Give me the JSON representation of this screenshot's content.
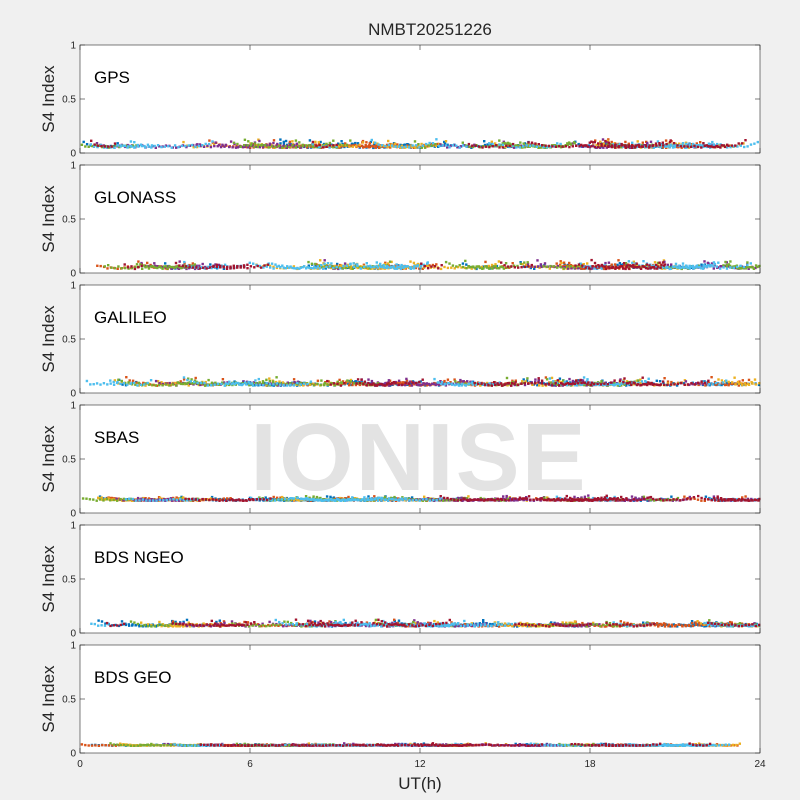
{
  "chart_data": {
    "type": "scatter",
    "title": "NMBT20251226",
    "xlabel": "UT(h)",
    "xlim": [
      0,
      24
    ],
    "xticks": [
      "0",
      "6",
      "12",
      "18",
      "24"
    ],
    "watermark": "IONISE",
    "series_colors": [
      "#0072BD",
      "#D95319",
      "#EDB120",
      "#7E2F8E",
      "#77AC30",
      "#4DBEEE",
      "#A2142F"
    ],
    "panels": [
      {
        "name": "GPS",
        "ylabel": "S4 Index",
        "ylim": [
          0,
          1
        ],
        "yticks": [
          "0",
          "0.5",
          "1"
        ],
        "baseline_s4": 0.06,
        "spread": 0.05
      },
      {
        "name": "GLONASS",
        "ylabel": "S4 Index",
        "ylim": [
          0,
          1
        ],
        "yticks": [
          "0",
          "0.5",
          "1"
        ],
        "baseline_s4": 0.05,
        "spread": 0.05
      },
      {
        "name": "GALILEO",
        "ylabel": "S4 Index",
        "ylim": [
          0,
          1
        ],
        "yticks": [
          "0",
          "0.5",
          "1"
        ],
        "baseline_s4": 0.08,
        "spread": 0.05
      },
      {
        "name": "SBAS",
        "ylabel": "S4 Index",
        "ylim": [
          0,
          1
        ],
        "yticks": [
          "0",
          "0.5",
          "1"
        ],
        "baseline_s4": 0.12,
        "spread": 0.03
      },
      {
        "name": "BDS NGEO",
        "ylabel": "S4 Index",
        "ylim": [
          0,
          1
        ],
        "yticks": [
          "0",
          "0.5",
          "1"
        ],
        "baseline_s4": 0.07,
        "spread": 0.04
      },
      {
        "name": "BDS GEO",
        "ylabel": "S4 Index",
        "ylim": [
          0,
          1
        ],
        "yticks": [
          "0",
          "0.5",
          "1"
        ],
        "baseline_s4": 0.07,
        "spread": 0.015
      }
    ]
  }
}
